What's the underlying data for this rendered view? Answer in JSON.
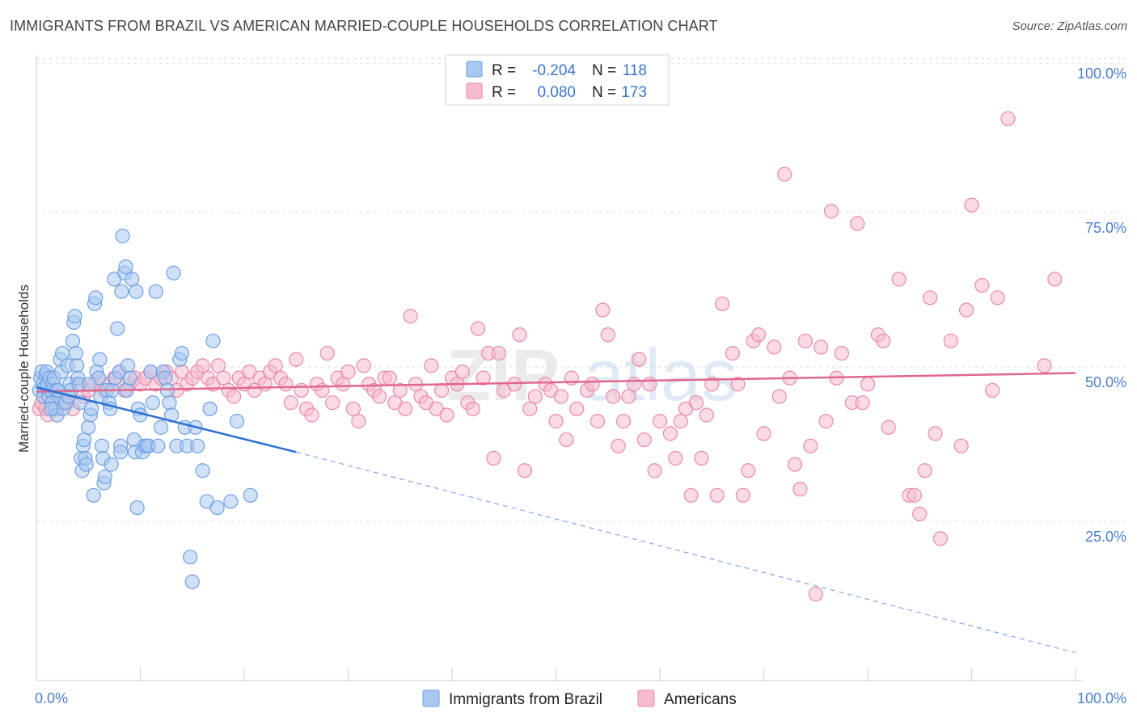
{
  "title": "IMMIGRANTS FROM BRAZIL VS AMERICAN MARRIED-COUPLE HOUSEHOLDS CORRELATION CHART",
  "source": "Source: ZipAtlas.com",
  "watermark": {
    "zip": "ZIP",
    "atlas": "atlas"
  },
  "legend": {
    "r_label": "R =",
    "n_label": "N =",
    "rows": [
      {
        "r": "-0.204",
        "n": "118",
        "color": "#a9c8f0",
        "stroke": "#6a9be0"
      },
      {
        "r": "0.080",
        "n": "173",
        "color": "#f6bccd",
        "stroke": "#e88aa7"
      }
    ]
  },
  "bottom_legend": [
    "Immigrants from Brazil",
    "Americans"
  ],
  "chart_data": {
    "type": "scatter",
    "title": "IMMIGRANTS FROM BRAZIL VS AMERICAN MARRIED-COUPLE HOUSEHOLDS CORRELATION CHART",
    "xlabel": "",
    "ylabel": "Married-couple Households",
    "xlim": [
      0,
      100
    ],
    "ylim": [
      0,
      100
    ],
    "x_tick_labels": [
      "0.0%",
      "100.0%"
    ],
    "y_tick_labels": [
      "100.0%",
      "75.0%",
      "50.0%",
      "25.0%"
    ],
    "y_ticks": [
      100,
      75,
      50,
      25
    ],
    "grid": "horizontal dashed",
    "legend_position": "top-center",
    "series": [
      {
        "name": "Immigrants from Brazil",
        "color": "#6fa0e3",
        "fill": "#a9c8f0",
        "trend": {
          "x": [
            0,
            25
          ],
          "y": [
            47.5,
            37.0
          ],
          "dashed_extension_to": [
            100,
            4.5
          ],
          "color": "#2e6fd3"
        },
        "points": [
          [
            0.3,
            47
          ],
          [
            0.4,
            49
          ],
          [
            0.5,
            50
          ],
          [
            0.6,
            48
          ],
          [
            0.7,
            46
          ],
          [
            0.8,
            47.5
          ],
          [
            0.9,
            49.5
          ],
          [
            1,
            50
          ],
          [
            1.1,
            48
          ],
          [
            1.2,
            46
          ],
          [
            1.3,
            49
          ],
          [
            1.4,
            47
          ],
          [
            1.5,
            45
          ],
          [
            1.6,
            48
          ],
          [
            1.7,
            49
          ],
          [
            1.8,
            44
          ],
          [
            1.9,
            47
          ],
          [
            2,
            43
          ],
          [
            2.2,
            46
          ],
          [
            2.3,
            52
          ],
          [
            2.4,
            50
          ],
          [
            2.5,
            53
          ],
          [
            2.6,
            44
          ],
          [
            2.8,
            45
          ],
          [
            3,
            51
          ],
          [
            3.2,
            48
          ],
          [
            3.3,
            47
          ],
          [
            3.5,
            55
          ],
          [
            3.6,
            58
          ],
          [
            3.7,
            59
          ],
          [
            3.8,
            53
          ],
          [
            3.9,
            51
          ],
          [
            4,
            49
          ],
          [
            4.2,
            45
          ],
          [
            4.3,
            36
          ],
          [
            4.4,
            34
          ],
          [
            4.5,
            38
          ],
          [
            4.6,
            39
          ],
          [
            4.7,
            36
          ],
          [
            4.8,
            35
          ],
          [
            5,
            41
          ],
          [
            5.2,
            43
          ],
          [
            5.3,
            44
          ],
          [
            5.5,
            30
          ],
          [
            5.6,
            61
          ],
          [
            5.7,
            62
          ],
          [
            5.8,
            50
          ],
          [
            6,
            49
          ],
          [
            6.2,
            46
          ],
          [
            6.3,
            38
          ],
          [
            6.4,
            36
          ],
          [
            6.5,
            32
          ],
          [
            6.6,
            33
          ],
          [
            6.8,
            47
          ],
          [
            7,
            45
          ],
          [
            7.2,
            35
          ],
          [
            7.3,
            47
          ],
          [
            7.5,
            65
          ],
          [
            7.6,
            49
          ],
          [
            7.8,
            57
          ],
          [
            8,
            50
          ],
          [
            8.1,
            38
          ],
          [
            8.2,
            63
          ],
          [
            8.3,
            72
          ],
          [
            8.5,
            66
          ],
          [
            8.6,
            67
          ],
          [
            8.7,
            47
          ],
          [
            8.8,
            51
          ],
          [
            9,
            49
          ],
          [
            9.2,
            65
          ],
          [
            9.4,
            39
          ],
          [
            9.5,
            37
          ],
          [
            9.6,
            63
          ],
          [
            9.7,
            28
          ],
          [
            9.8,
            44
          ],
          [
            10,
            43
          ],
          [
            10.2,
            37
          ],
          [
            10.4,
            38
          ],
          [
            10.6,
            38
          ],
          [
            10.8,
            38
          ],
          [
            11,
            50
          ],
          [
            11.2,
            45
          ],
          [
            11.5,
            63
          ],
          [
            11.7,
            38
          ],
          [
            12,
            41
          ],
          [
            12.2,
            50
          ],
          [
            12.4,
            49
          ],
          [
            12.6,
            47
          ],
          [
            12.8,
            45
          ],
          [
            13,
            43
          ],
          [
            13.2,
            66
          ],
          [
            13.5,
            38
          ],
          [
            13.8,
            52
          ],
          [
            14,
            53
          ],
          [
            14.3,
            41
          ],
          [
            14.5,
            38
          ],
          [
            14.8,
            20
          ],
          [
            15,
            16
          ],
          [
            15.3,
            41
          ],
          [
            15.5,
            38
          ],
          [
            16,
            34
          ],
          [
            16.4,
            29
          ],
          [
            16.7,
            44
          ],
          [
            17,
            55
          ],
          [
            17.4,
            28
          ],
          [
            18.7,
            29
          ],
          [
            19.3,
            42
          ],
          [
            20.6,
            30
          ],
          [
            1.4,
            44
          ],
          [
            2.1,
            47
          ],
          [
            3.1,
            46
          ],
          [
            4.1,
            48
          ],
          [
            5.1,
            48
          ],
          [
            6.1,
            52
          ],
          [
            7.1,
            44
          ],
          [
            8.1,
            37
          ]
        ]
      },
      {
        "name": "Americans",
        "color": "#e88aa7",
        "fill": "#f6bccd",
        "trend": {
          "x": [
            0,
            100
          ],
          "y": [
            46.8,
            49.8
          ],
          "color": "#e0678f"
        },
        "points": [
          [
            0.3,
            44
          ],
          [
            0.5,
            45
          ],
          [
            0.7,
            46
          ],
          [
            0.9,
            44
          ],
          [
            1.1,
            43
          ],
          [
            1.3,
            47
          ],
          [
            1.5,
            45
          ],
          [
            2,
            44
          ],
          [
            2.5,
            46
          ],
          [
            3,
            45
          ],
          [
            3.5,
            44
          ],
          [
            4,
            48
          ],
          [
            4.5,
            46
          ],
          [
            5,
            47
          ],
          [
            5.5,
            48
          ],
          [
            6,
            49
          ],
          [
            6.5,
            47
          ],
          [
            7,
            48
          ],
          [
            7.5,
            49
          ],
          [
            8,
            50
          ],
          [
            8.5,
            47
          ],
          [
            9,
            48
          ],
          [
            9.5,
            49
          ],
          [
            10,
            48
          ],
          [
            10.5,
            49
          ],
          [
            11,
            50
          ],
          [
            11.5,
            48
          ],
          [
            12,
            49
          ],
          [
            12.5,
            50
          ],
          [
            13,
            49
          ],
          [
            13.5,
            47
          ],
          [
            14,
            50
          ],
          [
            14.5,
            48
          ],
          [
            15,
            49
          ],
          [
            15.5,
            50
          ],
          [
            16,
            51
          ],
          [
            16.5,
            49
          ],
          [
            17,
            48
          ],
          [
            17.5,
            51
          ],
          [
            18,
            49
          ],
          [
            18.5,
            47
          ],
          [
            19,
            46
          ],
          [
            19.5,
            49
          ],
          [
            20,
            48
          ],
          [
            20.5,
            50
          ],
          [
            21,
            47
          ],
          [
            21.5,
            49
          ],
          [
            22,
            48
          ],
          [
            22.5,
            50
          ],
          [
            23,
            51
          ],
          [
            23.5,
            49
          ],
          [
            24,
            48
          ],
          [
            24.5,
            45
          ],
          [
            25,
            52
          ],
          [
            25.5,
            47
          ],
          [
            26,
            44
          ],
          [
            26.5,
            43
          ],
          [
            27,
            48
          ],
          [
            27.5,
            47
          ],
          [
            28,
            53
          ],
          [
            28.5,
            45
          ],
          [
            29,
            49
          ],
          [
            29.5,
            48
          ],
          [
            30,
            50
          ],
          [
            30.5,
            44
          ],
          [
            31,
            42
          ],
          [
            31.5,
            51
          ],
          [
            32,
            48
          ],
          [
            32.5,
            47
          ],
          [
            33,
            46
          ],
          [
            33.5,
            49
          ],
          [
            34,
            49
          ],
          [
            34.5,
            45
          ],
          [
            35,
            47
          ],
          [
            35.5,
            44
          ],
          [
            36,
            59
          ],
          [
            36.5,
            48
          ],
          [
            37,
            46
          ],
          [
            37.5,
            45
          ],
          [
            38,
            51
          ],
          [
            38.5,
            44
          ],
          [
            39,
            47
          ],
          [
            39.5,
            43
          ],
          [
            40,
            49
          ],
          [
            40.5,
            48
          ],
          [
            41,
            50
          ],
          [
            41.5,
            45
          ],
          [
            42,
            44
          ],
          [
            42.5,
            57
          ],
          [
            43,
            49
          ],
          [
            43.5,
            53
          ],
          [
            44,
            36
          ],
          [
            44.5,
            53
          ],
          [
            45,
            47
          ],
          [
            46,
            48
          ],
          [
            46.5,
            56
          ],
          [
            47,
            34
          ],
          [
            47.5,
            44
          ],
          [
            48,
            46
          ],
          [
            49,
            48
          ],
          [
            49.5,
            47
          ],
          [
            50,
            42
          ],
          [
            50.5,
            46
          ],
          [
            51,
            39
          ],
          [
            51.5,
            49
          ],
          [
            52,
            44
          ],
          [
            53,
            47
          ],
          [
            53.5,
            48
          ],
          [
            54,
            42
          ],
          [
            54.5,
            60
          ],
          [
            55,
            56
          ],
          [
            55.5,
            46
          ],
          [
            56,
            38
          ],
          [
            56.5,
            42
          ],
          [
            57,
            46
          ],
          [
            57.5,
            48
          ],
          [
            58,
            52
          ],
          [
            58.5,
            39
          ],
          [
            59,
            48
          ],
          [
            59.5,
            34
          ],
          [
            60,
            42
          ],
          [
            61,
            40
          ],
          [
            61.5,
            36
          ],
          [
            62,
            42
          ],
          [
            62.5,
            44
          ],
          [
            63,
            30
          ],
          [
            63.5,
            45
          ],
          [
            64,
            36
          ],
          [
            64.5,
            43
          ],
          [
            65,
            48
          ],
          [
            65.5,
            30
          ],
          [
            66,
            61
          ],
          [
            67,
            53
          ],
          [
            67.5,
            48
          ],
          [
            68,
            30
          ],
          [
            68.5,
            34
          ],
          [
            69,
            55
          ],
          [
            69.5,
            56
          ],
          [
            70,
            40
          ],
          [
            71,
            54
          ],
          [
            71.5,
            46
          ],
          [
            72,
            82
          ],
          [
            72.5,
            49
          ],
          [
            73,
            35
          ],
          [
            73.5,
            31
          ],
          [
            74,
            55
          ],
          [
            74.5,
            38
          ],
          [
            75,
            14
          ],
          [
            75.5,
            54
          ],
          [
            76,
            42
          ],
          [
            76.5,
            76
          ],
          [
            77,
            49
          ],
          [
            77.5,
            53
          ],
          [
            78.5,
            45
          ],
          [
            79,
            74
          ],
          [
            79.5,
            45
          ],
          [
            80,
            48
          ],
          [
            81,
            56
          ],
          [
            81.5,
            55
          ],
          [
            82,
            41
          ],
          [
            83,
            65
          ],
          [
            84,
            30
          ],
          [
            85,
            27
          ],
          [
            85.5,
            34
          ],
          [
            86,
            62
          ],
          [
            86.5,
            40
          ],
          [
            87,
            23
          ],
          [
            88,
            55
          ],
          [
            89,
            38
          ],
          [
            89.5,
            60
          ],
          [
            90,
            77
          ],
          [
            91,
            64
          ],
          [
            92,
            47
          ],
          [
            92.5,
            62
          ],
          [
            93.5,
            91
          ],
          [
            97,
            51
          ],
          [
            98,
            65
          ],
          [
            84.5,
            30
          ]
        ]
      }
    ]
  }
}
